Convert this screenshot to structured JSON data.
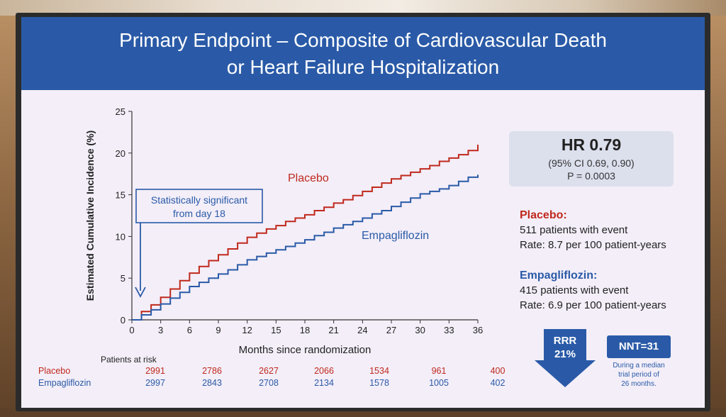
{
  "slide": {
    "title_line1": "Primary Endpoint – Composite of Cardiovascular Death",
    "title_line2": "or Heart Failure Hospitalization"
  },
  "chart_data": {
    "type": "line",
    "xlabel": "Months since randomization",
    "ylabel": "Estimated Cumulative Incidence (%)",
    "xlim": [
      0,
      36
    ],
    "ylim": [
      0,
      25
    ],
    "x_ticks": [
      "0",
      "3",
      "6",
      "9",
      "12",
      "15",
      "18",
      "21",
      "24",
      "27",
      "30",
      "33",
      "36"
    ],
    "y_ticks": [
      "0",
      "5",
      "10",
      "15",
      "20",
      "25"
    ],
    "series": [
      {
        "name": "Placebo",
        "color": "#c0281c",
        "x": [
          0,
          1,
          2,
          3,
          4,
          5,
          6,
          7,
          8,
          9,
          10,
          11,
          12,
          13,
          14,
          15,
          16,
          17,
          18,
          19,
          20,
          21,
          22,
          23,
          24,
          25,
          26,
          27,
          28,
          29,
          30,
          31,
          32,
          33,
          34,
          35,
          36
        ],
        "y": [
          0,
          1.0,
          1.8,
          2.7,
          3.7,
          4.7,
          5.6,
          6.4,
          7.1,
          7.8,
          8.5,
          9.2,
          9.9,
          10.4,
          10.9,
          11.3,
          11.8,
          12.2,
          12.6,
          13.1,
          13.5,
          14.0,
          14.4,
          14.9,
          15.4,
          15.9,
          16.4,
          16.9,
          17.3,
          17.7,
          18.1,
          18.5,
          19.0,
          19.4,
          19.8,
          20.3,
          21.0
        ]
      },
      {
        "name": "Empagliflozin",
        "color": "#2a5aa7",
        "x": [
          0,
          1,
          2,
          3,
          4,
          5,
          6,
          7,
          8,
          9,
          10,
          11,
          12,
          13,
          14,
          15,
          16,
          17,
          18,
          19,
          20,
          21,
          22,
          23,
          24,
          25,
          26,
          27,
          28,
          29,
          30,
          31,
          32,
          33,
          34,
          35,
          36
        ],
        "y": [
          0,
          0.6,
          1.2,
          1.9,
          2.6,
          3.3,
          4.0,
          4.5,
          5.0,
          5.5,
          6.0,
          6.6,
          7.2,
          7.6,
          8.0,
          8.4,
          8.8,
          9.2,
          9.6,
          10.1,
          10.5,
          11.0,
          11.4,
          11.8,
          12.2,
          12.7,
          13.1,
          13.6,
          14.1,
          14.6,
          15.1,
          15.4,
          15.7,
          16.1,
          16.6,
          17.1,
          17.4
        ]
      }
    ],
    "series_labels": {
      "placebo": "Placebo",
      "empagliflozin": "Empagliflozin"
    },
    "annotation": {
      "line1": "Statistically significant",
      "line2": "from day 18"
    },
    "at_risk": {
      "header": "Patients at risk",
      "placebo_label": "Placebo",
      "empa_label": "Empagliflozin",
      "placebo": [
        "2991",
        "2786",
        "2627",
        "2066",
        "1534",
        "961",
        "400"
      ],
      "empa": [
        "2997",
        "2843",
        "2708",
        "2134",
        "1578",
        "1005",
        "402"
      ]
    }
  },
  "hr_box": {
    "main": "HR 0.79",
    "ci": "(95% CI 0.69, 0.90)",
    "p": "P = 0.0003"
  },
  "placebo_stats": {
    "head": "Placebo:",
    "events": "511 patients with event",
    "rate": "Rate: 8.7 per 100 patient-years"
  },
  "empa_stats": {
    "head": "Empagliflozin:",
    "events": "415 patients with event",
    "rate": "Rate: 6.9 per 100 patient-years"
  },
  "rrr": {
    "line1": "RRR",
    "line2": "21%"
  },
  "nnt": {
    "label": "NNT=31",
    "note1": "During a median",
    "note2": "trial period of",
    "note3": "26 months."
  }
}
